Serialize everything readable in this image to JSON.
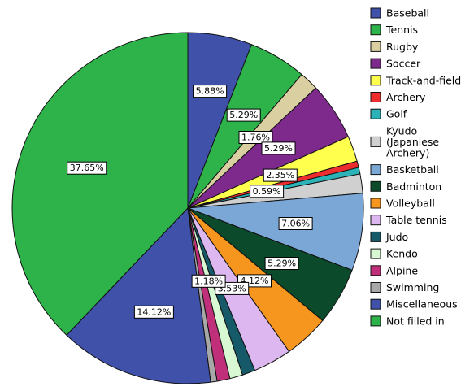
{
  "chart_data": {
    "type": "pie",
    "title": "",
    "start_angle_deg": 0,
    "direction": "clockwise",
    "slices": [
      {
        "label": "Baseball",
        "value": 5.88,
        "data_label": "5.88%",
        "color": "#3F51A8"
      },
      {
        "label": "Tennis",
        "value": 5.29,
        "data_label": "5.29%",
        "color": "#2DB34A"
      },
      {
        "label": "Rugby",
        "value": 1.76,
        "data_label": "1.76%",
        "color": "#D9CFA0"
      },
      {
        "label": "Soccer",
        "value": 5.29,
        "data_label": "5.29%",
        "color": "#7E2A8C"
      },
      {
        "label": "Track-and-field",
        "value": 2.35,
        "data_label": "2.35%",
        "color": "#FFFF4D"
      },
      {
        "label": "Archery",
        "value": 0.59,
        "data_label": "",
        "color": "#EE2E2E"
      },
      {
        "label": "Golf",
        "value": 0.59,
        "data_label": "0.59%",
        "color": "#2BB3B8"
      },
      {
        "label": "Kyudo (Japaniese Archery)",
        "value": 1.76,
        "data_label": "",
        "color": "#D0D0D0"
      },
      {
        "label": "Basketball",
        "value": 7.06,
        "data_label": "7.06%",
        "color": "#7BA7D7"
      },
      {
        "label": "Badminton",
        "value": 5.29,
        "data_label": "5.29%",
        "color": "#0B4A2A"
      },
      {
        "label": "Volleyball",
        "value": 4.12,
        "data_label": "4.12%",
        "color": "#F7961E"
      },
      {
        "label": "Table tennis",
        "value": 3.53,
        "data_label": "3.53%",
        "color": "#DDB8F0"
      },
      {
        "label": "Judo",
        "value": 1.18,
        "data_label": "",
        "color": "#165A6A"
      },
      {
        "label": "Kendo",
        "value": 1.18,
        "data_label": "1.18%",
        "color": "#D8F7D3"
      },
      {
        "label": "Alpine",
        "value": 1.18,
        "data_label": "",
        "color": "#C0307A"
      },
      {
        "label": "Swimming",
        "value": 0.59,
        "data_label": "",
        "color": "#A8A8A8"
      },
      {
        "label": "Miscellaneous",
        "value": 14.12,
        "data_label": "14.12%",
        "color": "#3F51A8"
      },
      {
        "label": "Not filled in",
        "value": 37.65,
        "data_label": "37.65%",
        "color": "#2DB34A"
      }
    ],
    "legend": {
      "position": "right",
      "entries": [
        [
          "Baseball"
        ],
        [
          "Tennis"
        ],
        [
          "Rugby"
        ],
        [
          "Soccer"
        ],
        [
          "Track-and-field"
        ],
        [
          "Archery"
        ],
        [
          "Golf"
        ],
        [
          "Kyudo",
          "(Japaniese",
          "Archery)"
        ],
        [
          "Basketball"
        ],
        [
          "Badminton"
        ],
        [
          "Volleyball"
        ],
        [
          "Table tennis"
        ],
        [
          "Judo"
        ],
        [
          "Kendo"
        ],
        [
          "Alpine"
        ],
        [
          "Swimming"
        ],
        [
          "Miscellaneous"
        ],
        [
          "Not filled in"
        ]
      ]
    }
  }
}
